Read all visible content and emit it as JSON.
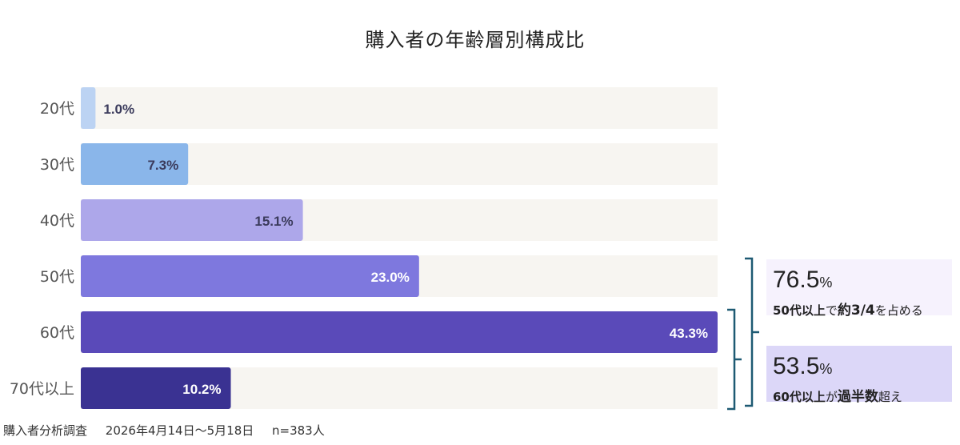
{
  "chart_data": {
    "type": "bar",
    "orientation": "horizontal",
    "title": "購入者の年齢層別構成比",
    "categories": [
      "20代",
      "30代",
      "40代",
      "50代",
      "60代",
      "70代以上"
    ],
    "values": [
      1.0,
      7.3,
      15.1,
      23.0,
      43.3,
      10.2
    ],
    "value_labels": [
      "1.0%",
      "7.3%",
      "15.1%",
      "23.0%",
      "43.3%",
      "10.2%"
    ],
    "xlim": [
      0,
      43.3
    ],
    "grid": false,
    "colors": [
      "#bcd3f3",
      "#8ab6ea",
      "#ada7ea",
      "#7e78de",
      "#5a4ab9",
      "#3a3292"
    ],
    "track_color": "#f7f5f1",
    "bracket_color": "#1e5a73",
    "annotations": [
      {
        "value": "76.5",
        "unit": "%",
        "text_parts": [
          {
            "text": "50代以上",
            "bold": true
          },
          {
            "text": "で",
            "bold": false
          },
          {
            "text": "約3/4",
            "bold": true
          },
          {
            "text": "を占める",
            "bold": false
          }
        ],
        "categories": [
          "50代",
          "60代",
          "70代以上"
        ],
        "background": "#f6f2fd"
      },
      {
        "value": "53.5",
        "unit": "%",
        "text_parts": [
          {
            "text": "60代以上",
            "bold": true
          },
          {
            "text": "が",
            "bold": false
          },
          {
            "text": "過半数",
            "bold": true
          },
          {
            "text": "超え",
            "bold": false
          }
        ],
        "categories": [
          "60代",
          "70代以上"
        ],
        "background": "#dcd7f8"
      }
    ]
  },
  "footnote": {
    "survey": "購入者分析調査",
    "period": "2026年4月14日〜5月18日",
    "sample": "n=383人"
  }
}
